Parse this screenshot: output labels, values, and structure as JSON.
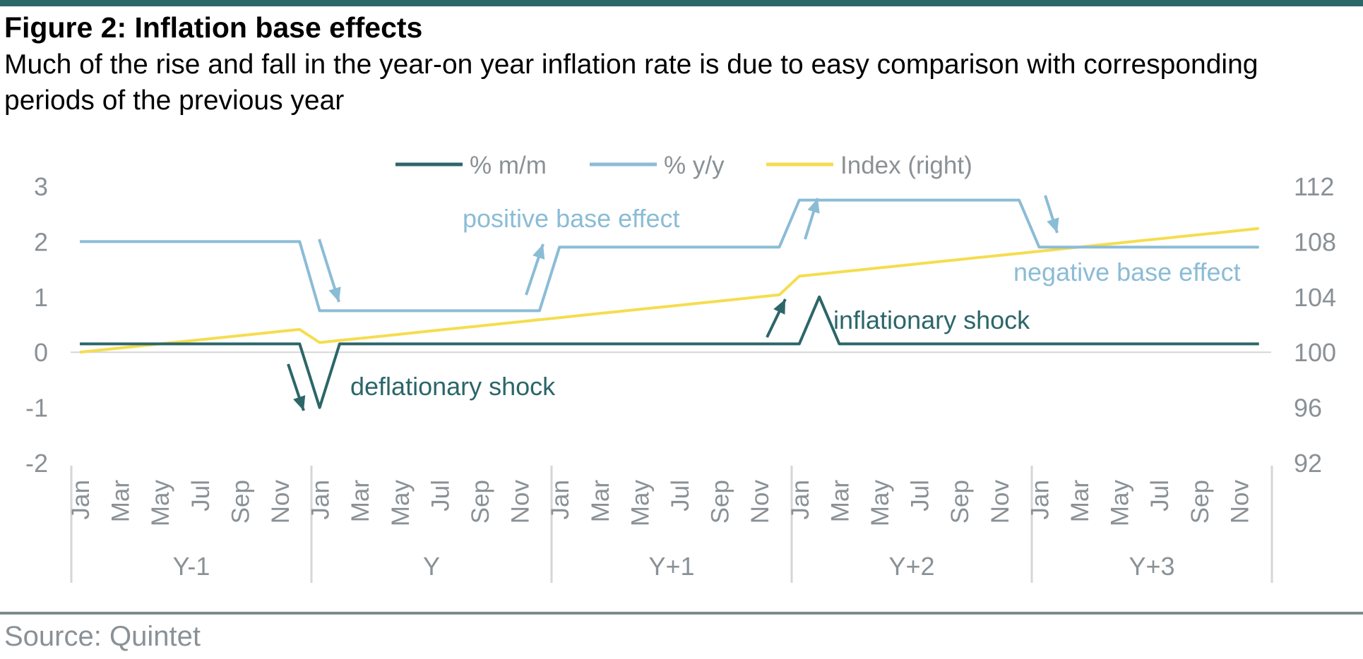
{
  "header": {
    "title": "Figure 2: Inflation base effects",
    "subtitle": "Much of the rise and fall in the year-on year inflation rate is due to easy comparison with corresponding periods of the previous year"
  },
  "footer": {
    "source": "Source: Quintet"
  },
  "colors": {
    "mm": "#2c6669",
    "yy": "#8bbcd6",
    "index": "#f5dd4f",
    "axis_text": "#8a9196",
    "grid": "#d6d6d6"
  },
  "chart_data": {
    "type": "line",
    "title": "Figure 2: Inflation base effects",
    "legend_position": "top-center",
    "grid": false,
    "month_labels": [
      "Jan",
      "Mar",
      "May",
      "Jul",
      "Sep",
      "Nov"
    ],
    "year_groups": [
      "Y-1",
      "Y",
      "Y+1",
      "Y+2",
      "Y+3"
    ],
    "y_left": {
      "ylim": [
        -2,
        3
      ],
      "ticks": [
        "3",
        "2",
        "1",
        "0",
        "-1",
        "-2"
      ]
    },
    "y_right": {
      "ylim": [
        92,
        112
      ],
      "ticks": [
        "112",
        "108",
        "104",
        "100",
        "96",
        "92"
      ]
    },
    "series": [
      {
        "name": "% m/m",
        "axis": "left",
        "color": "#2c6669",
        "values": [
          0.15,
          0.15,
          0.15,
          0.15,
          0.15,
          0.15,
          0.15,
          0.15,
          0.15,
          0.15,
          0.15,
          0.15,
          -1,
          0.15,
          0.15,
          0.15,
          0.15,
          0.15,
          0.15,
          0.15,
          0.15,
          0.15,
          0.15,
          0.15,
          0.15,
          0.15,
          0.15,
          0.15,
          0.15,
          0.15,
          0.15,
          0.15,
          0.15,
          0.15,
          0.15,
          0.15,
          0.15,
          1,
          0.15,
          0.15,
          0.15,
          0.15,
          0.15,
          0.15,
          0.15,
          0.15,
          0.15,
          0.15,
          0.15,
          0.15,
          0.15,
          0.15,
          0.15,
          0.15,
          0.15,
          0.15,
          0.15,
          0.15,
          0.15,
          0.15
        ]
      },
      {
        "name": "% y/y",
        "axis": "left",
        "color": "#8bbcd6",
        "values": [
          2,
          2,
          2,
          2,
          2,
          2,
          2,
          2,
          2,
          2,
          2,
          2,
          0.75,
          0.75,
          0.75,
          0.75,
          0.75,
          0.75,
          0.75,
          0.75,
          0.75,
          0.75,
          0.75,
          0.75,
          1.9,
          1.9,
          1.9,
          1.9,
          1.9,
          1.9,
          1.9,
          1.9,
          1.9,
          1.9,
          1.9,
          1.9,
          2.75,
          2.75,
          2.75,
          2.75,
          2.75,
          2.75,
          2.75,
          2.75,
          2.75,
          2.75,
          2.75,
          2.75,
          1.9,
          1.9,
          1.9,
          1.9,
          1.9,
          1.9,
          1.9,
          1.9,
          1.9,
          1.9,
          1.9,
          1.9
        ]
      },
      {
        "name": "Index (right)",
        "axis": "right",
        "color": "#f5dd4f",
        "values": [
          100,
          100.15,
          100.3,
          100.45,
          100.6,
          100.75,
          100.9,
          101.05,
          101.2,
          101.35,
          101.5,
          101.65,
          100.7,
          100.85,
          101,
          101.15,
          101.3,
          101.45,
          101.6,
          101.75,
          101.9,
          102.05,
          102.2,
          102.35,
          102.5,
          102.65,
          102.8,
          102.95,
          103.1,
          103.25,
          103.4,
          103.55,
          103.7,
          103.85,
          104,
          104.15,
          105.5,
          105.65,
          105.8,
          105.95,
          106.1,
          106.25,
          106.4,
          106.55,
          106.7,
          106.85,
          107,
          107.15,
          107.3,
          107.45,
          107.6,
          107.75,
          107.9,
          108.05,
          108.2,
          108.35,
          108.5,
          108.65,
          108.8,
          108.95
        ]
      }
    ],
    "annotations": [
      {
        "text": "positive base effect",
        "color": "#8bbcd6"
      },
      {
        "text": "negative base effect",
        "color": "#8bbcd6"
      },
      {
        "text": "inflationary shock",
        "color": "#2c6669"
      },
      {
        "text": "deflationary shock",
        "color": "#2c6669"
      }
    ]
  }
}
